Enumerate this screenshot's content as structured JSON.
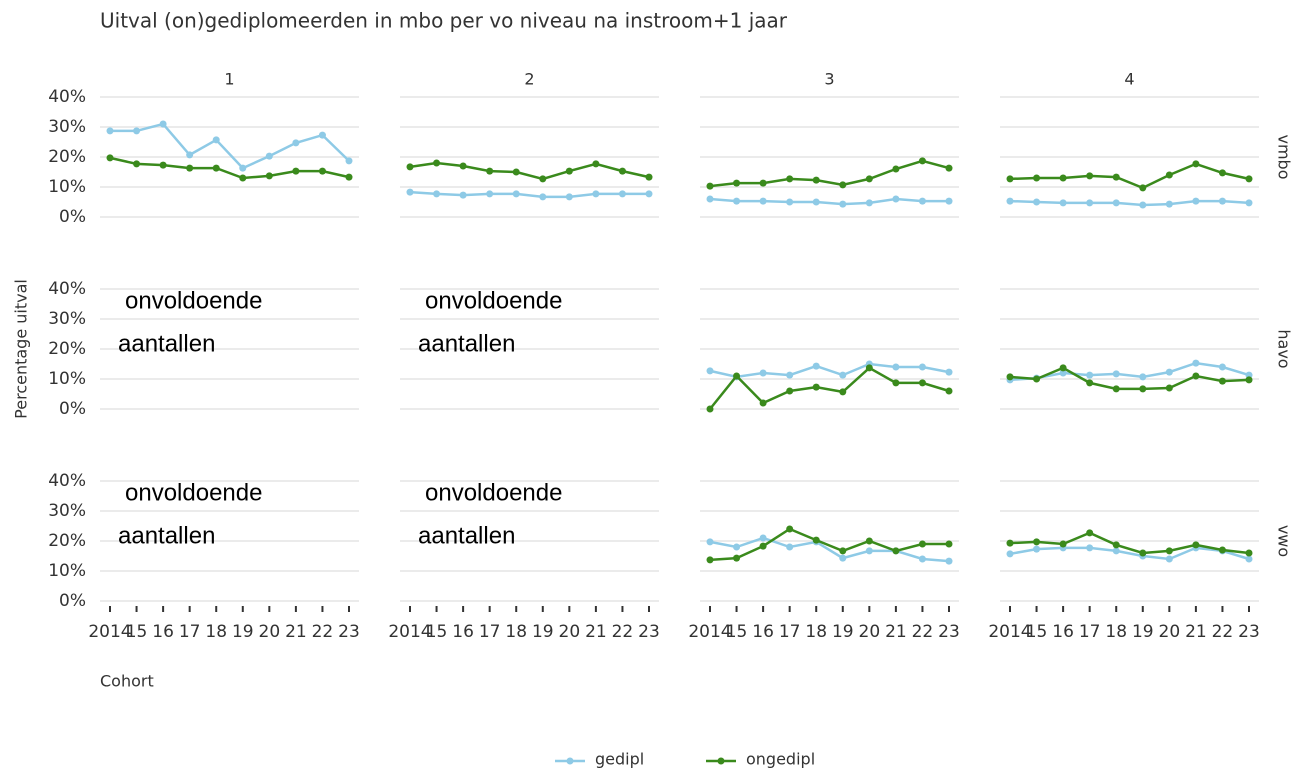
{
  "chart_data": {
    "type": "facet",
    "title": "Uitval (on)gediplomeerden in mbo per vo niveau na instroom+1 jaar",
    "y_label": "Percentage uitval",
    "x_label": "Cohort",
    "columns": [
      "1",
      "2",
      "3",
      "4"
    ],
    "rows": [
      "vmbo",
      "havo",
      "vwo"
    ],
    "series": [
      {
        "name": "gedipl",
        "color": "#8ecae6"
      },
      {
        "name": "ongedipl",
        "color": "#3a8a1c"
      }
    ],
    "x": [
      2014,
      2015,
      2016,
      2017,
      2018,
      2019,
      2020,
      2021,
      2022,
      2023
    ],
    "xlim": [
      2014,
      2023
    ],
    "xticks": [
      2014,
      {
        "value": 2015,
        "label": "15"
      },
      {
        "value": 2016,
        "label": "16"
      },
      {
        "value": 2017,
        "label": "17"
      },
      {
        "value": 2018,
        "label": "18"
      },
      {
        "value": 2019,
        "label": "19"
      },
      {
        "value": 2020,
        "label": "20"
      },
      {
        "value": 2021,
        "label": "21"
      },
      {
        "value": 2022,
        "label": "22"
      },
      {
        "value": 2023,
        "label": "23"
      }
    ],
    "ylim": [
      0,
      40
    ],
    "yticks": [
      {
        "value": 0,
        "label": "0%"
      },
      {
        "value": 10,
        "label": "10%"
      },
      {
        "value": 20,
        "label": "20%"
      },
      {
        "value": 30,
        "label": "30%"
      },
      {
        "value": 40,
        "label": "40%"
      }
    ],
    "grid": true,
    "legend": "bottom",
    "panels": [
      {
        "type": "line",
        "values": [
          [
            28.7,
            28.7,
            31,
            20.7,
            25.7,
            16.3,
            20.3,
            24.7,
            27.3,
            18.7
          ],
          [
            19.7,
            17.7,
            17.3,
            16.3,
            16.3,
            13,
            13.7,
            15.3,
            15.3,
            13.3
          ]
        ]
      },
      {
        "type": "line",
        "values": [
          [
            8.3,
            7.7,
            7.3,
            7.7,
            7.7,
            6.7,
            6.7,
            7.7,
            7.7,
            7.7
          ],
          [
            16.7,
            18,
            17,
            15.3,
            15,
            12.7,
            15.3,
            17.7,
            15.3,
            13.3
          ]
        ]
      },
      {
        "type": "line",
        "values": [
          [
            6,
            5.3,
            5.3,
            5,
            5,
            4.3,
            4.7,
            6,
            5.3,
            5.3
          ],
          [
            10.3,
            11.3,
            11.3,
            12.7,
            12.3,
            10.7,
            12.7,
            16,
            18.7,
            16.3
          ]
        ]
      },
      {
        "type": "line",
        "values": [
          [
            5.3,
            5,
            4.7,
            4.7,
            4.7,
            4,
            4.3,
            5.3,
            5.3,
            4.7
          ],
          [
            12.7,
            13,
            13,
            13.7,
            13.3,
            9.7,
            14,
            17.7,
            14.7,
            12.7
          ]
        ]
      },
      {
        "type": "text",
        "annotation": [
          "onvoldoende",
          "aantallen"
        ]
      },
      {
        "type": "text",
        "annotation": [
          "onvoldoende",
          "aantallen"
        ]
      },
      {
        "type": "line",
        "values": [
          [
            12.7,
            10.7,
            12,
            11.3,
            14.3,
            11.3,
            15,
            14,
            14,
            12.3
          ],
          [
            0,
            11,
            2,
            6,
            7.3,
            5.7,
            13.7,
            8.7,
            8.7,
            6
          ]
        ]
      },
      {
        "type": "line",
        "values": [
          [
            9.7,
            10.3,
            12,
            11.3,
            11.7,
            10.7,
            12.3,
            15.3,
            14,
            11.3
          ],
          [
            10.7,
            10,
            13.7,
            8.7,
            6.7,
            6.7,
            7,
            11,
            9.3,
            9.7
          ]
        ]
      },
      {
        "type": "text",
        "annotation": [
          "onvoldoende",
          "aantallen"
        ]
      },
      {
        "type": "text",
        "annotation": [
          "onvoldoende",
          "aantallen"
        ]
      },
      {
        "type": "line",
        "values": [
          [
            19.7,
            18,
            21,
            18,
            19.7,
            14.3,
            16.7,
            16.7,
            14,
            13.3
          ],
          [
            13.7,
            14.3,
            18.3,
            24,
            20.3,
            16.7,
            20,
            16.7,
            19,
            19
          ]
        ]
      },
      {
        "type": "line",
        "values": [
          [
            15.7,
            17.3,
            17.7,
            17.7,
            16.7,
            15,
            14,
            17.7,
            16.7,
            14
          ],
          [
            19.3,
            19.7,
            19,
            22.7,
            18.7,
            16,
            16.7,
            18.7,
            17,
            16
          ]
        ]
      }
    ]
  }
}
